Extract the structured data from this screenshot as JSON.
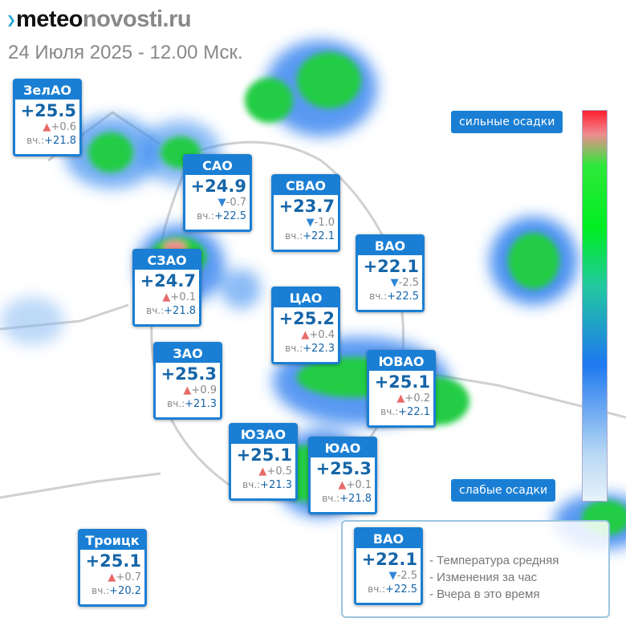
{
  "header": {
    "logo_dark": "meteo",
    "logo_light": "novosti.ru",
    "date": "24 Июля 2025 - 12.00 Мск."
  },
  "scale": {
    "top_label": "сильные осадки",
    "bottom_label": "слабые осадки"
  },
  "districts": [
    {
      "name": "ЗелАО",
      "temp": "+25.5",
      "dir": "up",
      "delta": "+0.6",
      "yest": "+21.8"
    },
    {
      "name": "САО",
      "temp": "+24.9",
      "dir": "down",
      "delta": "-0.7",
      "yest": "+22.5"
    },
    {
      "name": "СВАО",
      "temp": "+23.7",
      "dir": "down",
      "delta": "-1.0",
      "yest": "+22.1"
    },
    {
      "name": "ВАО",
      "temp": "+22.1",
      "dir": "down",
      "delta": "-2.5",
      "yest": "+22.5"
    },
    {
      "name": "СЗАО",
      "temp": "+24.7",
      "dir": "up",
      "delta": "+0.1",
      "yest": "+21.8"
    },
    {
      "name": "ЦАО",
      "temp": "+25.2",
      "dir": "up",
      "delta": "+0.4",
      "yest": "+22.3"
    },
    {
      "name": "ЗАО",
      "temp": "+25.3",
      "dir": "up",
      "delta": "+0.9",
      "yest": "+21.3"
    },
    {
      "name": "ЮВАО",
      "temp": "+25.1",
      "dir": "up",
      "delta": "+0.2",
      "yest": "+22.1"
    },
    {
      "name": "ЮЗАО",
      "temp": "+25.1",
      "dir": "up",
      "delta": "+0.5",
      "yest": "+21.3"
    },
    {
      "name": "ЮАО",
      "temp": "+25.3",
      "dir": "up",
      "delta": "+0.1",
      "yest": "+21.8"
    },
    {
      "name": "Троицк",
      "temp": "+25.1",
      "dir": "up",
      "delta": "+0.7",
      "yest": "+20.2"
    }
  ],
  "yest_prefix": "вч.:",
  "legend": {
    "sample": {
      "name": "ВАО",
      "temp": "+22.1",
      "dir": "down",
      "delta": "-2.5",
      "yest": "+22.5"
    },
    "lines": [
      "- Температура средняя",
      "- Изменения за час",
      "- Вчера в это время"
    ]
  }
}
